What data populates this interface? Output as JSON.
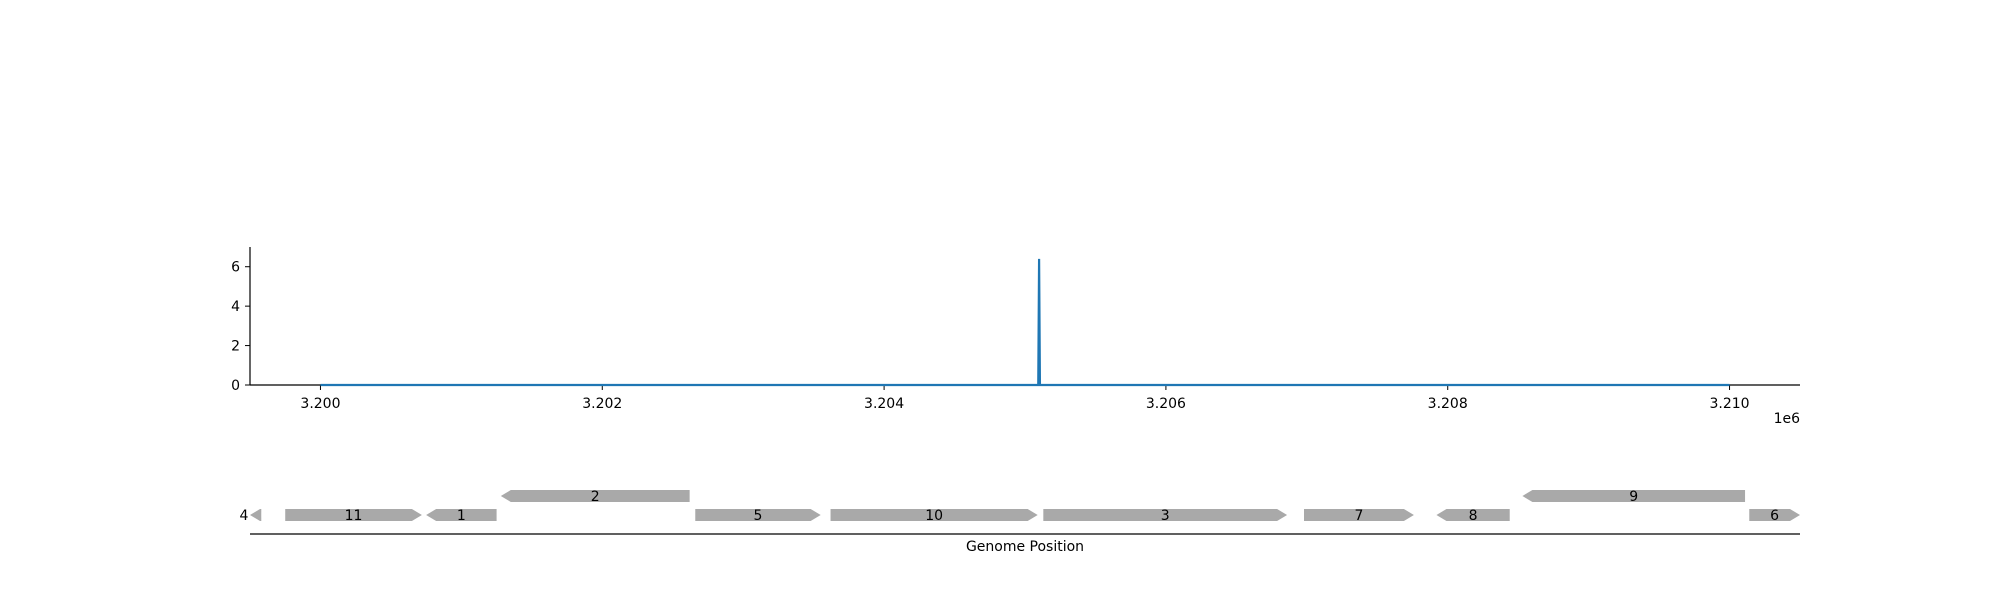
{
  "chart_data": {
    "type": "line",
    "x_multiplier_label": "1e6",
    "xlim": [
      3199500,
      3210500
    ],
    "ylim": [
      0,
      7
    ],
    "x_ticks": [
      {
        "value": 3200000,
        "label": "3.200"
      },
      {
        "value": 3202000,
        "label": "3.202"
      },
      {
        "value": 3204000,
        "label": "3.204"
      },
      {
        "value": 3206000,
        "label": "3.206"
      },
      {
        "value": 3208000,
        "label": "3.208"
      },
      {
        "value": 3210000,
        "label": "3.210"
      }
    ],
    "y_ticks": [
      {
        "value": 0,
        "label": "0"
      },
      {
        "value": 2,
        "label": "2"
      },
      {
        "value": 4,
        "label": "4"
      },
      {
        "value": 6,
        "label": "6"
      }
    ],
    "series": [
      {
        "color": "#1f77b4",
        "x": [
          3200000,
          3205094,
          3205100,
          3205106,
          3210000
        ],
        "y": [
          0,
          0,
          6.4,
          0,
          0
        ]
      }
    ],
    "grid": false
  },
  "gene_track": {
    "xlabel": "Genome Position",
    "feature_color": "#a9a9a9",
    "genes": [
      {
        "label": "4",
        "start": 3199500,
        "end": 3199580,
        "strand": "-",
        "row": 0
      },
      {
        "label": "11",
        "start": 3199750,
        "end": 3200720,
        "strand": "+",
        "row": 0
      },
      {
        "label": "1",
        "start": 3200750,
        "end": 3201250,
        "strand": "-",
        "row": 0
      },
      {
        "label": "2",
        "start": 3201280,
        "end": 3202620,
        "strand": "-",
        "row": 1
      },
      {
        "label": "5",
        "start": 3202660,
        "end": 3203550,
        "strand": "+",
        "row": 0
      },
      {
        "label": "10",
        "start": 3203620,
        "end": 3205090,
        "strand": "+",
        "row": 0
      },
      {
        "label": "3",
        "start": 3205130,
        "end": 3206860,
        "strand": "+",
        "row": 0
      },
      {
        "label": "7",
        "start": 3206980,
        "end": 3207760,
        "strand": "+",
        "row": 0
      },
      {
        "label": "8",
        "start": 3207920,
        "end": 3208440,
        "strand": "-",
        "row": 0
      },
      {
        "label": "9",
        "start": 3208530,
        "end": 3210110,
        "strand": "-",
        "row": 1
      },
      {
        "label": "6",
        "start": 3210140,
        "end": 3210500,
        "strand": "+",
        "row": 0
      }
    ]
  }
}
